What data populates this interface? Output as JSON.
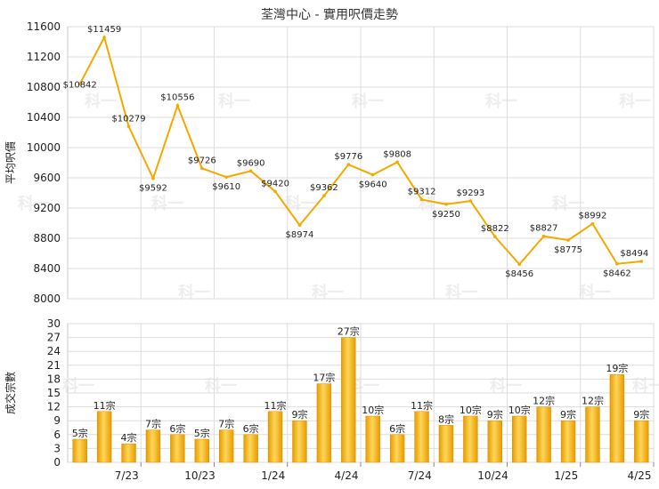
{
  "chart_data": [
    {
      "type": "line",
      "title": "荃灣中心 - 實用呎價走勢",
      "ylabel": "平均呎價",
      "ylim": [
        8000,
        11600
      ],
      "yticks": [
        8000,
        8400,
        8800,
        9200,
        9600,
        10000,
        10400,
        10800,
        11200,
        11600
      ],
      "grid": true,
      "color": "#f5a800",
      "series": [
        {
          "values": [
            10842,
            11459,
            10279,
            9592,
            10556,
            9726,
            9610,
            9690,
            9420,
            8974,
            9362,
            9776,
            9640,
            9808,
            9312,
            9250,
            9293,
            8822,
            8456,
            8827,
            8775,
            8992,
            8462,
            8494
          ],
          "labels": [
            "$10842",
            "$11459",
            "$10279",
            "$9592",
            "$10556",
            "$9726",
            "$9610",
            "$9690",
            "$9420",
            "$8974",
            "$9362",
            "$9776",
            "$9640",
            "$9808",
            "$9312",
            "$9250",
            "$9293",
            "$8822",
            "$8456",
            "$8827",
            "$8775",
            "$8992",
            "$8462",
            "$8494"
          ]
        }
      ]
    },
    {
      "type": "bar",
      "ylabel": "成交宗數",
      "ylim": [
        0,
        30
      ],
      "yticks": [
        0,
        3,
        6,
        9,
        12,
        15,
        18,
        21,
        24,
        27,
        30
      ],
      "grid": true,
      "color": "#f5b000",
      "values": [
        5,
        11,
        4,
        7,
        6,
        5,
        7,
        6,
        11,
        9,
        17,
        27,
        10,
        6,
        11,
        8,
        10,
        9,
        10,
        12,
        9,
        12,
        19,
        9
      ],
      "labels": [
        "5宗",
        "11宗",
        "4宗",
        "7宗",
        "6宗",
        "5宗",
        "7宗",
        "6宗",
        "11宗",
        "9宗",
        "17宗",
        "27宗",
        "10宗",
        "6宗",
        "11宗",
        "8宗",
        "10宗",
        "9宗",
        "10宗",
        "12宗",
        "9宗",
        "12宗",
        "19宗",
        "9宗"
      ],
      "x_tick_labels": [
        {
          "index": 2,
          "label": "7/23"
        },
        {
          "index": 5,
          "label": "10/23"
        },
        {
          "index": 8,
          "label": "1/24"
        },
        {
          "index": 11,
          "label": "4/24"
        },
        {
          "index": 14,
          "label": "7/24"
        },
        {
          "index": 17,
          "label": "10/24"
        },
        {
          "index": 20,
          "label": "1/25"
        },
        {
          "index": 23,
          "label": "4/25"
        }
      ]
    }
  ],
  "watermark": "科一"
}
